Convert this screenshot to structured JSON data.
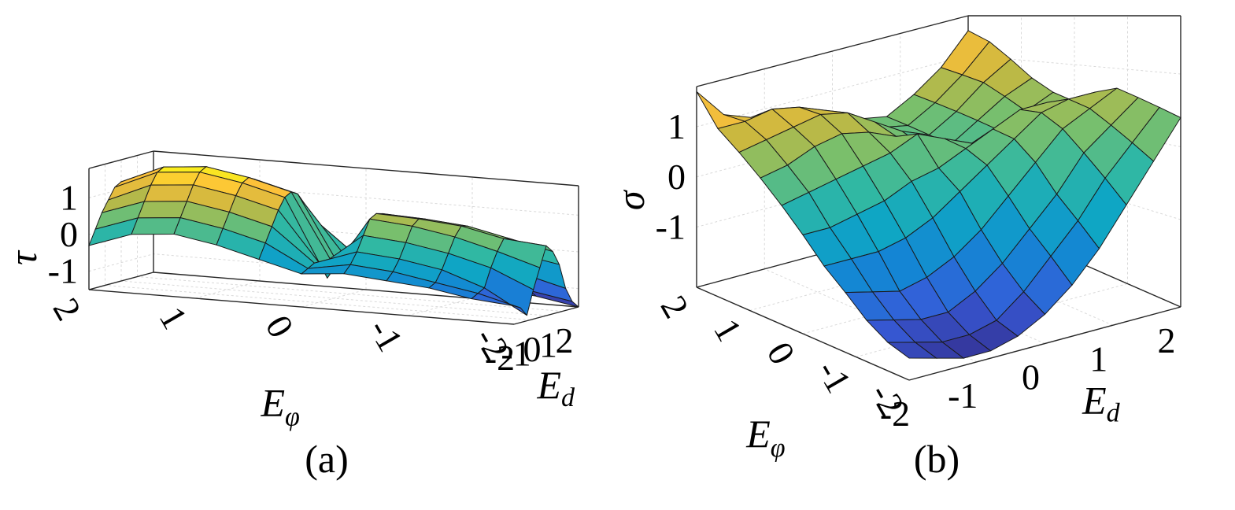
{
  "chart_data": [
    {
      "type": "surface",
      "panel": "(a)",
      "zlabel": "τ",
      "xlabel": "E",
      "xlabel_sub": "d",
      "ylabel": "E",
      "ylabel_sub": "φ",
      "xticks": [
        "-2",
        "-1",
        "0",
        "1",
        "2"
      ],
      "yticks": [
        "-2",
        "-1",
        "0",
        "1",
        "2"
      ],
      "zticks": [
        "-1",
        "0",
        "1"
      ],
      "xlim": [
        -2,
        2
      ],
      "ylim": [
        -2,
        2
      ],
      "zlim": [
        -1.5,
        1.8
      ],
      "grid": true,
      "x": [
        -2,
        -1.6,
        -1.2,
        -0.8,
        -0.4,
        0,
        0.4,
        0.8,
        1.2,
        1.6,
        2
      ],
      "y": [
        -2,
        -1.6,
        -1.2,
        -0.8,
        -0.4,
        0,
        0.4,
        0.8,
        1.2,
        1.6,
        2
      ],
      "z": [
        [
          -1.0,
          -1.1,
          -1.35,
          -0.7,
          -0.15,
          0.4,
          0.2,
          -0.2,
          -0.9,
          -1.3,
          -1.5
        ],
        [
          -0.9,
          -0.8,
          -0.7,
          -0.2,
          0.2,
          0.5,
          0.45,
          0.0,
          -0.6,
          -1.1,
          -1.3
        ],
        [
          -0.7,
          -0.6,
          -0.3,
          0.1,
          0.5,
          0.75,
          0.7,
          0.3,
          -0.3,
          -0.9,
          -1.2
        ],
        [
          -0.6,
          -0.4,
          -0.1,
          0.3,
          0.7,
          0.85,
          0.8,
          0.45,
          -0.2,
          -0.8,
          -1.1
        ],
        [
          -0.5,
          -0.3,
          0.0,
          0.4,
          0.8,
          0.9,
          0.85,
          0.5,
          -0.1,
          -0.7,
          -1.0
        ],
        [
          -0.6,
          -0.5,
          -0.4,
          -0.5,
          -0.9,
          -0.6,
          -0.7,
          -0.5,
          -0.4,
          -0.5,
          -0.6
        ],
        [
          -0.3,
          0.1,
          0.5,
          0.9,
          1.2,
          1.3,
          1.2,
          0.9,
          0.5,
          0.1,
          -0.3
        ],
        [
          0.0,
          0.4,
          0.8,
          1.2,
          1.5,
          1.6,
          1.5,
          1.2,
          0.8,
          0.3,
          -0.1
        ],
        [
          0.2,
          0.6,
          1.0,
          1.4,
          1.7,
          1.8,
          1.7,
          1.4,
          1.0,
          0.5,
          0.0
        ],
        [
          0.1,
          0.5,
          0.9,
          1.3,
          1.6,
          1.7,
          1.6,
          1.3,
          0.9,
          0.4,
          -0.1
        ],
        [
          -0.3,
          0.1,
          0.5,
          0.8,
          1.1,
          1.2,
          1.1,
          0.8,
          0.4,
          0.0,
          -0.4
        ]
      ]
    },
    {
      "type": "surface",
      "panel": "(b)",
      "zlabel": "σ",
      "xlabel": "E",
      "xlabel_sub": "d",
      "ylabel": "E",
      "ylabel_sub": "φ",
      "xticks": [
        "-2",
        "-1",
        "0",
        "1",
        "2"
      ],
      "yticks": [
        "-2",
        "-1",
        "0",
        "1",
        "2"
      ],
      "zticks": [
        "-1",
        "0",
        "1"
      ],
      "xlim": [
        -2,
        2
      ],
      "ylim": [
        -2,
        2
      ],
      "zlim": [
        -2.2,
        1.8
      ],
      "grid": true,
      "x": [
        -2,
        -1.6,
        -1.2,
        -0.8,
        -0.4,
        0,
        0.4,
        0.8,
        1.2,
        1.6,
        2
      ],
      "y": [
        -2,
        -1.6,
        -1.2,
        -0.8,
        -0.4,
        0,
        0.4,
        0.8,
        1.2,
        1.6,
        2
      ],
      "z": [
        [
          -1.9,
          -2.0,
          -2.1,
          -2.1,
          -2.0,
          -1.8,
          -1.5,
          -1.1,
          -0.6,
          -0.1,
          0.4
        ],
        [
          -1.8,
          -1.9,
          -2.0,
          -2.0,
          -1.9,
          -1.6,
          -1.2,
          -0.8,
          -0.3,
          0.1,
          0.5
        ],
        [
          -1.6,
          -1.7,
          -1.8,
          -1.8,
          -1.6,
          -1.3,
          -0.9,
          -0.5,
          0.0,
          0.3,
          0.6
        ],
        [
          -1.3,
          -1.4,
          -1.5,
          -1.4,
          -1.2,
          -0.9,
          -0.5,
          -0.1,
          0.3,
          0.5,
          0.7
        ],
        [
          -1.0,
          -1.0,
          -1.0,
          -0.9,
          -0.7,
          -0.4,
          -0.1,
          0.2,
          0.5,
          0.6,
          0.6
        ],
        [
          -0.6,
          -0.6,
          -0.5,
          -0.4,
          -0.2,
          -0.1,
          0.1,
          0.3,
          0.5,
          0.5,
          0.4
        ],
        [
          -0.2,
          -0.1,
          0.0,
          0.1,
          0.2,
          0.4,
          0.2,
          0.0,
          0.1,
          0.3,
          0.5
        ],
        [
          0.2,
          0.3,
          0.5,
          0.6,
          0.5,
          0.3,
          0.0,
          -0.1,
          0.2,
          0.5,
          0.7
        ],
        [
          0.6,
          0.7,
          0.8,
          0.9,
          0.8,
          0.5,
          0.2,
          0.0,
          0.3,
          0.7,
          1.0
        ],
        [
          1.0,
          1.0,
          1.1,
          1.0,
          0.8,
          0.5,
          0.2,
          0.1,
          0.4,
          0.8,
          1.3
        ],
        [
          1.7,
          1.1,
          0.9,
          0.7,
          0.6,
          0.4,
          0.3,
          0.2,
          0.5,
          0.9,
          1.5
        ]
      ]
    }
  ]
}
